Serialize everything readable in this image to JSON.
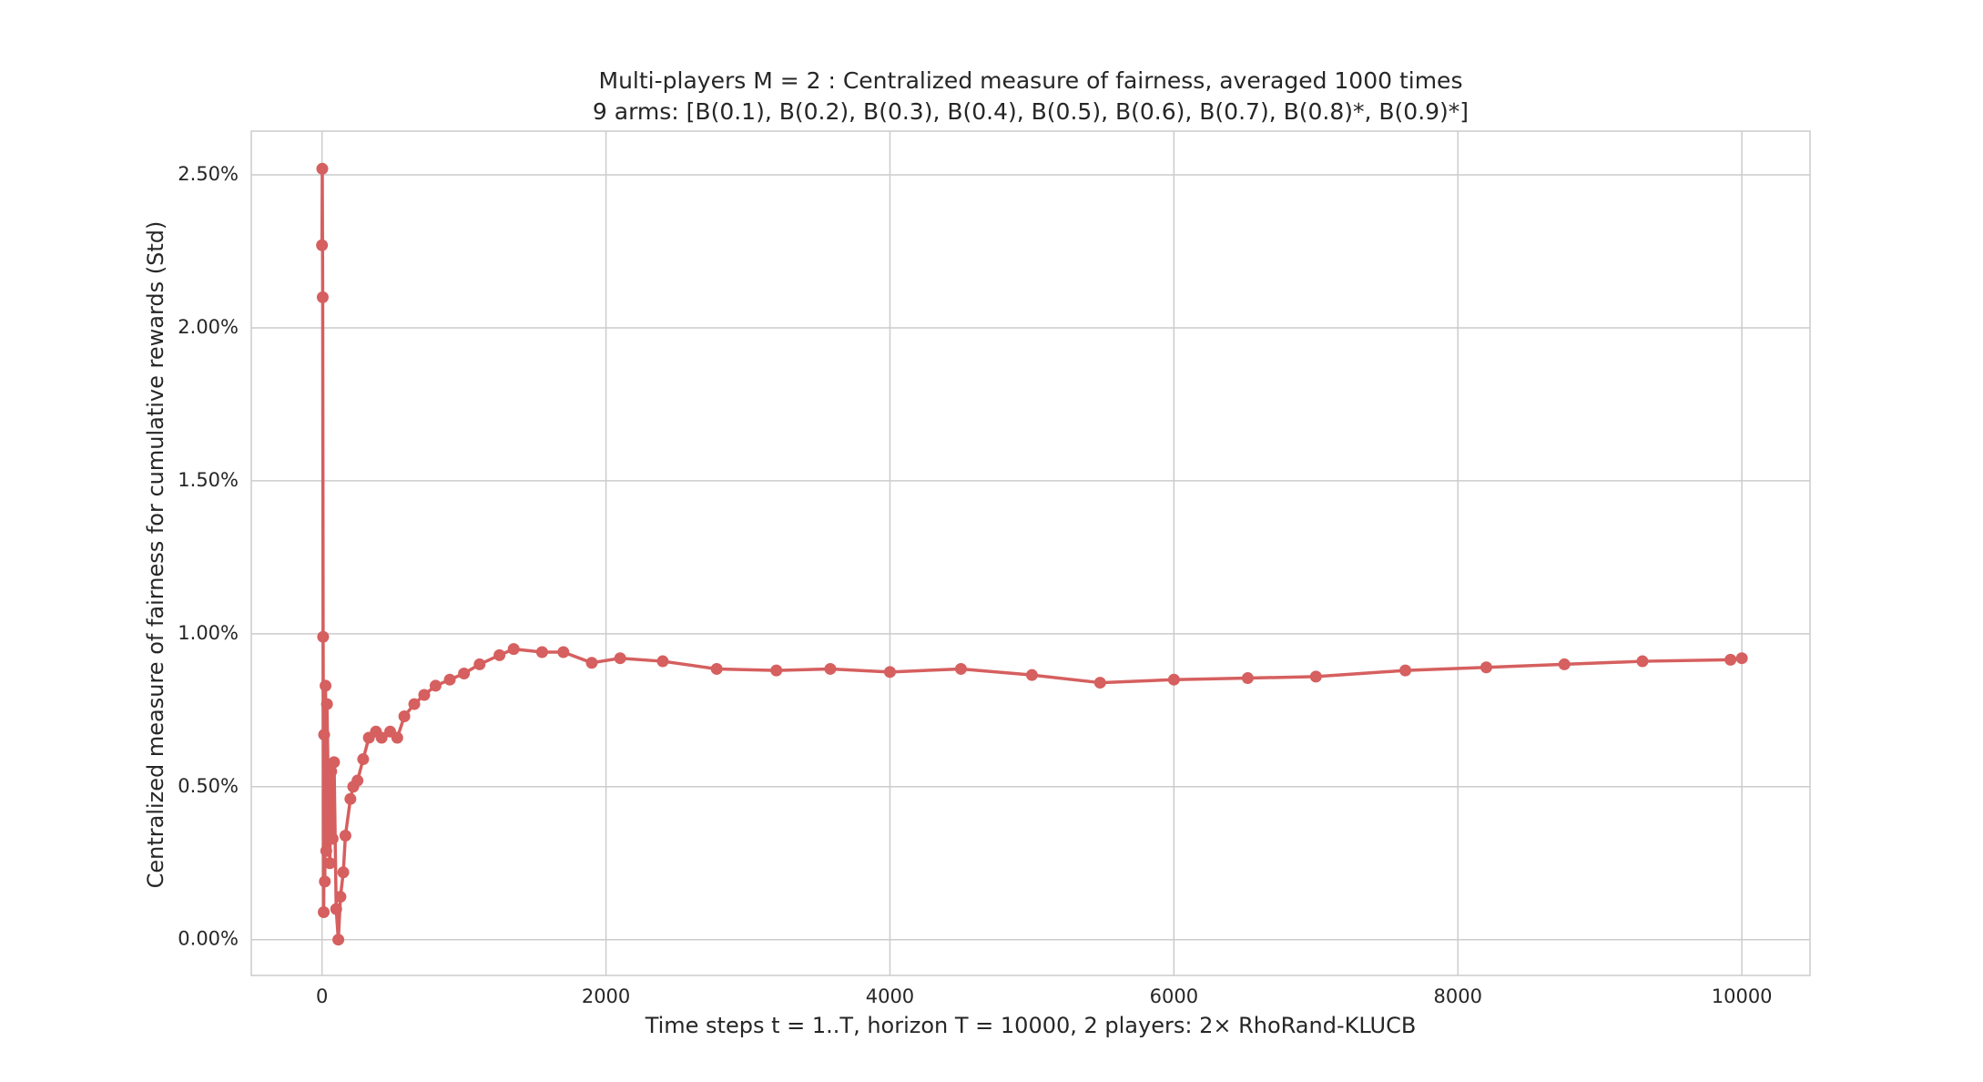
{
  "chart_data": {
    "type": "line",
    "title": "Multi-players M = 2 : Centralized measure of fairness, averaged 1000 times",
    "subtitle": "9 arms: [B(0.1), B(0.2), B(0.3), B(0.4), B(0.5), B(0.6), B(0.7), B(0.8)*, B(0.9)*]",
    "x_label": "Time steps t = 1..T, horizon T = 10000, 2 players: 2× RhoRand-KLUCB",
    "y_label": "Centralized measure of fairness for cumulative rewards (Std)",
    "x": [
      0,
      2,
      5,
      8,
      12,
      15,
      20,
      25,
      30,
      35,
      45,
      55,
      65,
      75,
      85,
      100,
      115,
      130,
      150,
      165,
      200,
      220,
      250,
      290,
      330,
      380,
      420,
      480,
      530,
      580,
      650,
      720,
      800,
      900,
      1000,
      1110,
      1250,
      1350,
      1550,
      1700,
      1900,
      2100,
      2400,
      2780,
      3200,
      3580,
      4000,
      4500,
      5000,
      5480,
      6000,
      6520,
      7000,
      7630,
      8200,
      8750,
      9300,
      9920,
      10000
    ],
    "series": [
      {
        "color": "#d65f5f",
        "values": [
          2.27,
          2.52,
          2.1,
          0.99,
          0.09,
          0.67,
          0.19,
          0.83,
          0.29,
          0.77,
          0.47,
          0.25,
          0.55,
          0.33,
          0.58,
          0.1,
          0.0,
          0.14,
          0.22,
          0.34,
          0.46,
          0.5,
          0.52,
          0.59,
          0.66,
          0.68,
          0.66,
          0.68,
          0.66,
          0.73,
          0.77,
          0.8,
          0.83,
          0.85,
          0.87,
          0.9,
          0.93,
          0.95,
          0.94,
          0.94,
          0.905,
          0.92,
          0.91,
          0.885,
          0.88,
          0.885,
          0.875,
          0.885,
          0.865,
          0.84,
          0.85,
          0.855,
          0.86,
          0.88,
          0.89,
          0.9,
          0.91,
          0.915,
          0.92
        ]
      }
    ],
    "xlim": [
      -498,
      10480
    ],
    "xticks": [
      0,
      2000,
      4000,
      6000,
      8000,
      10000
    ],
    "ylim": [
      -0.117,
      2.643
    ],
    "yticks": [
      {
        "value": 0,
        "label": "0.00%"
      },
      {
        "value": 0.5,
        "label": "0.50%"
      },
      {
        "value": 1,
        "label": "1.00%"
      },
      {
        "value": 1.5,
        "label": "1.50%"
      },
      {
        "value": 2,
        "label": "2.00%"
      },
      {
        "value": 2.5,
        "label": "2.50%"
      }
    ],
    "grid": true
  }
}
